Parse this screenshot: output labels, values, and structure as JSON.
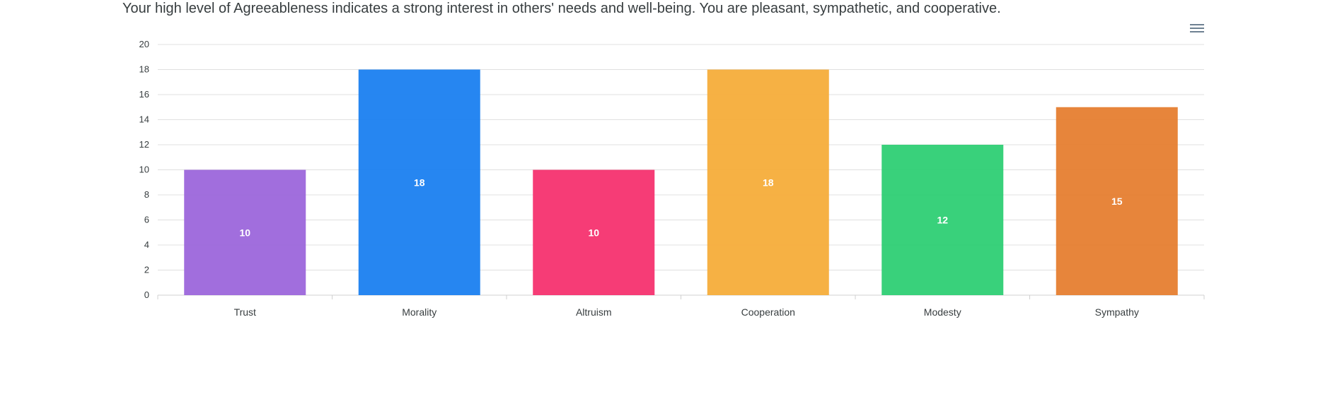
{
  "description": "Your high level of Agreeableness indicates a strong interest in others' needs and well-being. You are pleasant, sympathetic, and cooperative.",
  "toolbar": {
    "menu_icon": "hamburger-menu-icon"
  },
  "chart_data": {
    "type": "bar",
    "categories": [
      "Trust",
      "Morality",
      "Altruism",
      "Cooperation",
      "Modesty",
      "Sympathy"
    ],
    "values": [
      10,
      18,
      10,
      18,
      12,
      15
    ],
    "colors": [
      "#9c66db",
      "#1a7ff0",
      "#f5316f",
      "#f6ad3a",
      "#2ecf74",
      "#e67e30"
    ],
    "ylim": [
      0,
      20
    ],
    "yticks": [
      0,
      2,
      4,
      6,
      8,
      10,
      12,
      14,
      16,
      18,
      20
    ],
    "grid": true,
    "data_labels": true
  }
}
